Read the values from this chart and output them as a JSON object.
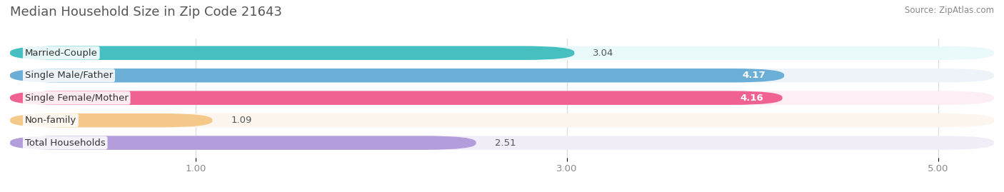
{
  "title": "Median Household Size in Zip Code 21643",
  "source": "Source: ZipAtlas.com",
  "categories": [
    "Married-Couple",
    "Single Male/Father",
    "Single Female/Mother",
    "Non-family",
    "Total Households"
  ],
  "values": [
    3.04,
    4.17,
    4.16,
    1.09,
    2.51
  ],
  "bar_colors": [
    "#45BFBF",
    "#6BAED6",
    "#F06292",
    "#F5C98A",
    "#B39DDB"
  ],
  "bar_bg_colors": [
    "#EAFAFAFA",
    "#EEF3FA",
    "#FDEEF5",
    "#FDF6EE",
    "#F2EEF8"
  ],
  "xlim": [
    0,
    5.3
  ],
  "xmin": 0,
  "xticks": [
    1.0,
    3.0,
    5.0
  ],
  "background_color": "#FFFFFF",
  "bar_height": 0.62,
  "title_fontsize": 13,
  "label_fontsize": 9.5,
  "value_fontsize": 9.5,
  "tick_fontsize": 9.5,
  "value_inside_threshold": 3.5
}
